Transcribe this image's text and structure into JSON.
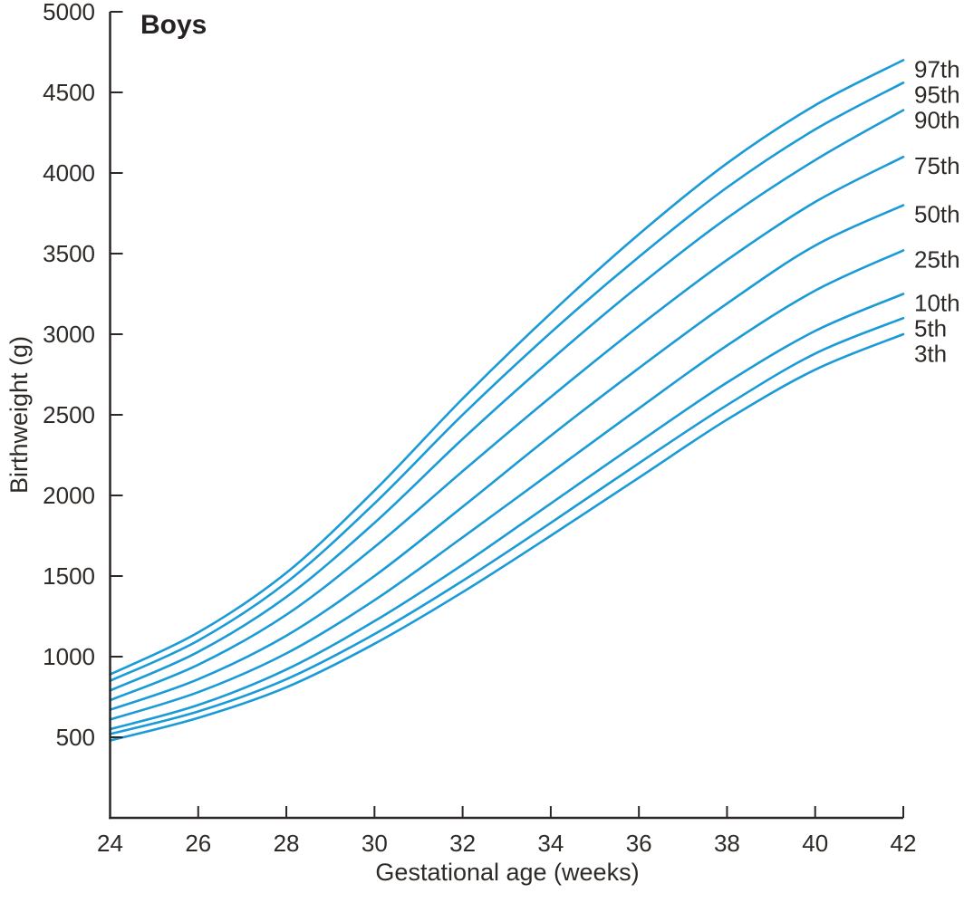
{
  "chart_data": {
    "type": "line",
    "title": "Boys",
    "xlabel": "Gestational age (weeks)",
    "ylabel": "Birthweight (g)",
    "x_ticks": [
      24,
      26,
      28,
      30,
      32,
      34,
      36,
      38,
      40,
      42
    ],
    "y_ticks": [
      500,
      1000,
      1500,
      2000,
      2500,
      3000,
      3500,
      4000,
      4500,
      5000
    ],
    "xlim": [
      24,
      42
    ],
    "ylim": [
      0,
      5000
    ],
    "grid": false,
    "legend_position": "right-edge-labels",
    "line_color": "#1a9bd7",
    "axis_color": "#2b2727",
    "x": [
      24,
      26,
      28,
      30,
      32,
      34,
      36,
      38,
      40,
      42
    ],
    "series": [
      {
        "name": "97th",
        "values": [
          890,
          1150,
          1520,
          2030,
          2600,
          3130,
          3620,
          4060,
          4420,
          4700
        ]
      },
      {
        "name": "95th",
        "values": [
          850,
          1100,
          1460,
          1950,
          2500,
          3010,
          3480,
          3910,
          4270,
          4560
        ]
      },
      {
        "name": "90th",
        "values": [
          790,
          1030,
          1370,
          1830,
          2350,
          2840,
          3300,
          3720,
          4080,
          4390
        ]
      },
      {
        "name": "75th",
        "values": [
          730,
          950,
          1260,
          1680,
          2150,
          2610,
          3050,
          3460,
          3820,
          4100
        ]
      },
      {
        "name": "50th",
        "values": [
          670,
          860,
          1130,
          1500,
          1930,
          2370,
          2790,
          3190,
          3550,
          3800
        ]
      },
      {
        "name": "25th",
        "values": [
          610,
          780,
          1020,
          1350,
          1740,
          2140,
          2540,
          2930,
          3270,
          3520
        ]
      },
      {
        "name": "10th",
        "values": [
          550,
          700,
          920,
          1220,
          1570,
          1950,
          2330,
          2700,
          3020,
          3250
        ]
      },
      {
        "name": "5th",
        "values": [
          520,
          660,
          860,
          1140,
          1470,
          1830,
          2200,
          2560,
          2880,
          3100
        ]
      },
      {
        "name": "3th",
        "values": [
          480,
          620,
          810,
          1080,
          1400,
          1750,
          2110,
          2470,
          2780,
          3000
        ]
      }
    ]
  }
}
